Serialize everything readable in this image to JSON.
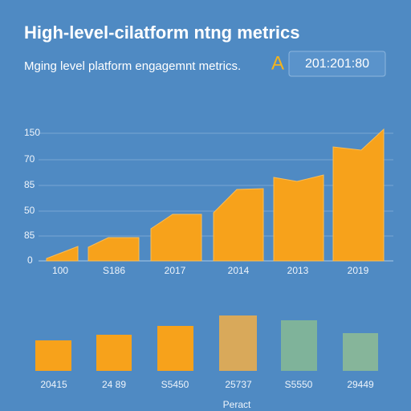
{
  "header": {
    "title": "High-level-cilatform ntng metrics",
    "subtitle": "Mging level platform engagemnt metrics.",
    "icon": "A",
    "badge": "201:201:80"
  },
  "top_panel": {
    "axis_labels": [
      "150",
      "70",
      "85",
      "50",
      "85",
      "0"
    ],
    "column_labels": [
      "100",
      "S186",
      "2017",
      "2014",
      "2013",
      "2019"
    ]
  },
  "bottom_panel": {
    "column_labels": [
      "20415",
      "24 89",
      "S5450",
      "25737",
      "S5550",
      "29449"
    ],
    "footer": "Peract"
  }
}
